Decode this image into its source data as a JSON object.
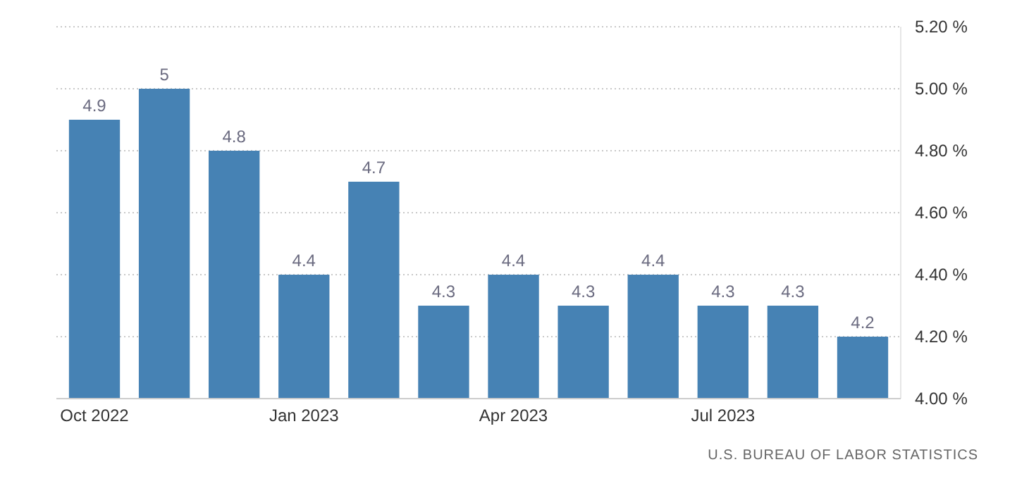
{
  "chart_data": {
    "type": "bar",
    "categories": [
      "Oct 2022",
      null,
      null,
      "Jan 2023",
      null,
      null,
      "Apr 2023",
      null,
      null,
      "Jul 2023",
      null,
      null
    ],
    "values": [
      4.9,
      5,
      4.8,
      4.4,
      4.7,
      4.3,
      4.4,
      4.3,
      4.4,
      4.3,
      4.3,
      4.2
    ],
    "color": "#4682b4",
    "ylim": [
      4,
      5.2
    ],
    "yticks": [
      {
        "value": 4,
        "label": "4.00 %"
      },
      {
        "value": 4.2,
        "label": "4.20 %"
      },
      {
        "value": 4.4,
        "label": "4.40 %"
      },
      {
        "value": 4.6,
        "label": "4.60 %"
      },
      {
        "value": 4.8,
        "label": "4.80 %"
      },
      {
        "value": 5,
        "label": "5.00 %"
      },
      {
        "value": 5.2,
        "label": "5.20 %"
      }
    ],
    "grid": "y",
    "data_labels": true,
    "annotations": [
      "U.S. BUREAU OF LABOR STATISTICS"
    ]
  }
}
